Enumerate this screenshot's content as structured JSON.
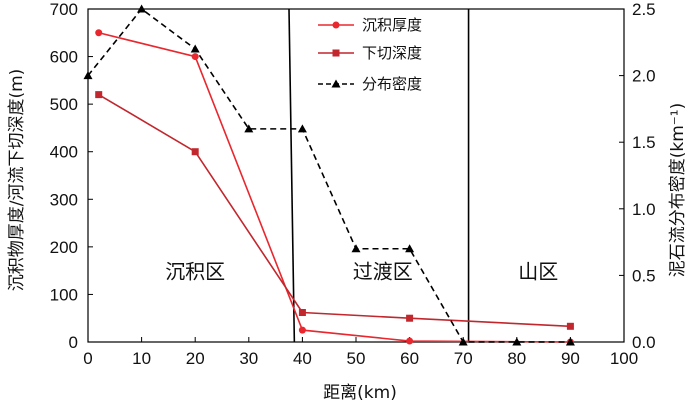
{
  "chart_data": {
    "type": "line",
    "xlabel": "距离(km)",
    "ylabel_left": "沉积物厚度/河流下切深度(m)",
    "ylabel_right": "泥石流分布密度(km⁻¹)",
    "x_range": [
      0,
      100
    ],
    "x_ticks": [
      0,
      10,
      20,
      30,
      40,
      50,
      60,
      70,
      80,
      90,
      100
    ],
    "y_left_range": [
      0,
      700
    ],
    "y_left_ticks": [
      0,
      100,
      200,
      300,
      400,
      500,
      600,
      700
    ],
    "y_right_range": [
      0,
      2.5
    ],
    "y_right_ticks": [
      "0.0",
      "0.5",
      "1.0",
      "1.5",
      "2.0",
      "2.5"
    ],
    "grid": false,
    "legend_position": "top-center",
    "series": [
      {
        "name": "沉积厚度",
        "axis": "left",
        "color": "#e8282e",
        "marker": "circle",
        "line_style": "solid",
        "x": [
          2,
          20,
          40,
          60,
          90
        ],
        "y": [
          650,
          600,
          25,
          2,
          0
        ]
      },
      {
        "name": "下切深度",
        "axis": "left",
        "color": "#c1272d",
        "marker": "square",
        "line_style": "solid",
        "x": [
          2,
          20,
          40,
          60,
          90
        ],
        "y": [
          520,
          400,
          62,
          50,
          33
        ]
      },
      {
        "name": "分布密度",
        "axis": "right",
        "color": "#000000",
        "marker": "triangle",
        "line_style": "dashed",
        "x": [
          0,
          10,
          20,
          30,
          40,
          50,
          60,
          70,
          80,
          90
        ],
        "y": [
          2.0,
          2.5,
          2.2,
          1.6,
          1.6,
          0.7,
          0.7,
          0.0,
          0.0,
          0.0
        ]
      }
    ],
    "boundaries": [
      {
        "x_top": 37.5,
        "x_bottom": 38.5
      },
      {
        "x_top": 71,
        "x_bottom": 71
      }
    ],
    "regions": [
      {
        "label": "沉积区",
        "x": 20,
        "y": 100
      },
      {
        "label": "过渡区",
        "x": 55,
        "y": 100
      },
      {
        "label": "山区",
        "x": 84,
        "y": 100
      }
    ]
  }
}
